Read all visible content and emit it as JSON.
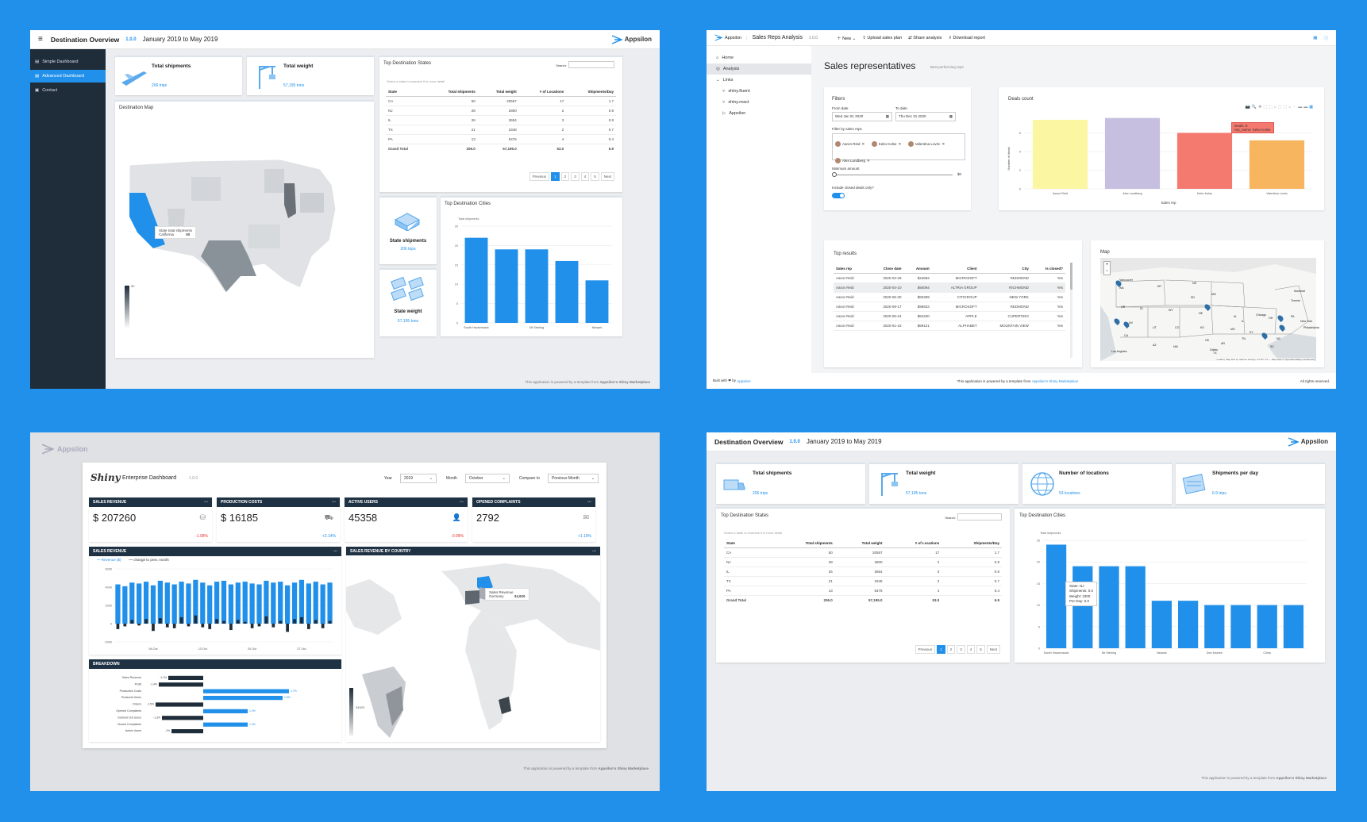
{
  "app1": {
    "title": "Destination Overview",
    "version": "1.0.0",
    "period": "January 2019 to May 2019",
    "brand": "Appsilon",
    "sidebar": [
      "Simple Dashboard",
      "Advanced Dashboard",
      "Contact"
    ],
    "kpis": [
      {
        "label": "Total shipments",
        "value": "206 trips"
      },
      {
        "label": "Total weight",
        "value": "57,195 tons"
      }
    ],
    "map_title": "Destination Map",
    "map_tooltip": {
      "title": "State total shipments",
      "state": "California",
      "value": "50"
    },
    "legend_max": "50",
    "table": {
      "title": "Top Destination States",
      "search_label": "Search:",
      "hint": "Select a state to examine it in more detail",
      "headers": [
        "State",
        "Total shipments",
        "Total weight",
        "# of Locations",
        "Shipments/Day"
      ],
      "rows": [
        [
          "CA",
          "50",
          "20557",
          "17",
          "1.7"
        ],
        [
          "NJ",
          "28",
          "2800",
          "2",
          "0.9"
        ],
        [
          "IL",
          "26",
          "3654",
          "3",
          "0.9"
        ],
        [
          "TX",
          "21",
          "3348",
          "2",
          "0.7"
        ],
        [
          "PA",
          "13",
          "5476",
          "4",
          "0.4"
        ]
      ],
      "total": [
        "Grand Total",
        "206.0",
        "57,195.0",
        "53.0",
        "6.9"
      ],
      "pagination": [
        "Previous",
        "1",
        "2",
        "3",
        "4",
        "5",
        "Next"
      ]
    },
    "state_shipments": {
      "label": "State shipments",
      "value": "206 trips"
    },
    "state_weight": {
      "label": "State weight",
      "value": "57,195 tons"
    },
    "cities_title": "Top Destination Cities",
    "cities_ylabel": "Total shipments",
    "footer_prefix": "This application is powered by a template from",
    "footer_link": "Appsilon's Shiny Marketplace"
  },
  "chart_cities_1": {
    "type": "bar",
    "categories": [
      "South Hackensack",
      "",
      "Mt Sterling",
      "",
      "Newark"
    ],
    "values": [
      22,
      19,
      19,
      16,
      11
    ],
    "ylabel": "Total shipments",
    "ylim": [
      0,
      25
    ],
    "yticks": [
      0,
      5,
      10,
      15,
      20,
      25
    ]
  },
  "app2": {
    "brand": "Appsilon",
    "title": "Sales Reps Analysis",
    "version": "1.0.0",
    "toolbar": [
      "New",
      "Upload sales plan",
      "Share analysis",
      "Download report"
    ],
    "nav": [
      "Home",
      "Analysis",
      "Links",
      "shiny.fluent",
      "shiny.react",
      "Appsilon"
    ],
    "heading": "Sales representatives",
    "subheading": "Best performing reps",
    "filters": {
      "title": "Filters",
      "from_label": "From date",
      "from_value": "Wed Jan 01 2020",
      "to_label": "To date",
      "to_value": "Thu Dec 31 2020",
      "reps_label": "Filter by sales reps",
      "reps": [
        "Aaron Reid",
        "Keko Kolse",
        "Valentina Lovric",
        "Alex Lundberg"
      ],
      "min_label": "Minimum amount",
      "min_value": "$0",
      "closed_label": "Include closed deals only?"
    },
    "deals": {
      "title": "Deals count",
      "ylabel": "Number of deals",
      "xlabel": "Sales rep",
      "tooltip_l1": "Deals: 6",
      "tooltip_l2": "rep_name: Keko Kolse"
    },
    "results": {
      "title": "Top results",
      "headers": [
        "Sales rep",
        "Close date",
        "Amount",
        "Client",
        "City",
        "Is closed?"
      ],
      "rows": [
        [
          "Aaron Reid",
          "2020-02-28",
          "$24682",
          "MICROSOFT",
          "REDMOND",
          "Yes"
        ],
        [
          "Aaron Reid",
          "2020-04-10",
          "$94094",
          "ALTRIA GROUP",
          "RICHMOND",
          "Yes"
        ],
        [
          "Aaron Reid",
          "2020-06-30",
          "$82289",
          "CITIGROUP",
          "NEW YORK",
          "Yes"
        ],
        [
          "Aaron Reid",
          "2020-09-17",
          "$95633",
          "MICROSOFT",
          "REDMOND",
          "Yes"
        ],
        [
          "Aaron Reid",
          "2020-06-24",
          "$84230",
          "APPLE",
          "CUPERTINO",
          "Yes"
        ],
        [
          "Aaron Reid",
          "2020-01-15",
          "$69121",
          "ALPHABET",
          "MOUNTAIN VIEW",
          "Yes"
        ]
      ]
    },
    "map_title": "Map",
    "map_labels": [
      "Vancouver",
      "WA",
      "MT",
      "ND",
      "MN",
      "OR",
      "ID",
      "SD",
      "WY",
      "NE",
      "NV",
      "UT",
      "CO",
      "KS",
      "CA",
      "AZ",
      "NM",
      "OK",
      "TX",
      "Los Angeles",
      "Dallas",
      "Montréal",
      "Toronto",
      "Chicago",
      "New York",
      "Philadelphia",
      "OH",
      "IL",
      "MO",
      "KY",
      "TN",
      "AR",
      "NC",
      "SC",
      "IA",
      "VA",
      "PA"
    ],
    "map_attrib": "Leaflet | Map tiles by Stamen Design, CC BY 3.0 — Map data © OpenStreetMap contributors",
    "built_with": "Built with ❤ by",
    "built_link": "Appsilon",
    "footer_prefix": "This application is powered by a template from",
    "footer_link": "Appsilon's Shiny Marketplace",
    "rights": "All rights reserved."
  },
  "chart_deals": {
    "type": "bar",
    "categories": [
      "Aaron Reid",
      "Alex Lundberg",
      "Keko Kolse",
      "Valentina Lovric"
    ],
    "values": [
      7.4,
      7.6,
      6,
      5.2
    ],
    "colors": [
      "#fbf6a2",
      "#c7bfe0",
      "#f4796e",
      "#f7b560"
    ],
    "ylim": [
      0,
      8
    ],
    "yticks": [
      0,
      2,
      4,
      6
    ]
  },
  "app3": {
    "brand": "Appsilon",
    "logo": "Shiny",
    "title": "Enterprise Dashboard",
    "version": "1.0.0",
    "year_label": "Year",
    "year_value": "2019",
    "month_label": "Month",
    "month_value": "October",
    "compare_label": "Compare to",
    "compare_value": "Previous Month",
    "kpis": [
      {
        "label": "SALES REVENUE",
        "value": "$ 207260",
        "delta": "-1.08%",
        "dir": "down"
      },
      {
        "label": "PRODUCTION COSTS",
        "value": "$ 16185",
        "delta": "+2.14%",
        "dir": "up"
      },
      {
        "label": "ACTIVE USERS",
        "value": "45358",
        "delta": "-0.99%",
        "dir": "down"
      },
      {
        "label": "OPENED COMPLAINTS",
        "value": "2792",
        "delta": "+1.19%",
        "dir": "up"
      }
    ],
    "revenue_title": "SALES REVENUE",
    "revenue_legend": [
      "Revenue ($)",
      "change to prev. month"
    ],
    "revenue_yticks": [
      "6000",
      "4000",
      "2000",
      "0",
      "-2000"
    ],
    "revenue_xticks": [
      "06 Oct",
      "13 Oct",
      "20 Oct",
      "27 Oct"
    ],
    "country_title": "SALES REVENUE BY COUNTRY",
    "country_tooltip_title": "Sales Revenue",
    "country_tooltip_name": "Germany",
    "country_tooltip_value": "34,920",
    "country_legend": "34920",
    "breakdown_title": "BREAKDOWN",
    "breakdown": [
      {
        "label": "Sales Revenue",
        "value": "-1.1%",
        "v": -1.1
      },
      {
        "label": "Profit",
        "value": "-1.4%",
        "v": -1.4
      },
      {
        "label": "Production Costs",
        "value": "2.7%",
        "v": 2.7
      },
      {
        "label": "Produced Items",
        "value": "2.5%",
        "v": 2.5
      },
      {
        "label": "Orders",
        "value": "-1.5%",
        "v": -1.5
      },
      {
        "label": "Opened Complaints",
        "value": "1.4%",
        "v": 1.4
      },
      {
        "label": "Drained Out Users",
        "value": "-1.3%",
        "v": -1.3
      },
      {
        "label": "Closed Complaints",
        "value": "1.4%",
        "v": 1.4
      },
      {
        "label": "Active Users",
        "value": "-1%",
        "v": -1.0
      }
    ],
    "footer_prefix": "This application is powered by a template from",
    "footer_link": "Appsilon's Shiny Marketplace"
  },
  "chart_revenue": {
    "type": "bar",
    "values": [
      4300,
      4100,
      4500,
      4400,
      4600,
      4200,
      4700,
      4500,
      4300,
      4600,
      4400,
      4800,
      4500,
      4200,
      4600,
      4700,
      4300,
      4500,
      4600,
      4400,
      4300,
      4700,
      4500,
      4600,
      4200,
      4500,
      4800,
      4400,
      4600,
      4300,
      4500
    ],
    "changes": [
      -600,
      -300,
      400,
      -200,
      500,
      -800,
      600,
      -400,
      -500,
      700,
      -300,
      900,
      -400,
      -600,
      500,
      300,
      -700,
      400,
      200,
      -500,
      -300,
      800,
      -400,
      300,
      -900,
      500,
      700,
      -600,
      400,
      -500,
      300
    ],
    "ylim": [
      -2000,
      6000
    ]
  },
  "app4": {
    "title": "Destination Overview",
    "version": "1.0.0",
    "period": "January 2019 to May 2019",
    "brand": "Appsilon",
    "kpis": [
      {
        "label": "Total shipments",
        "value": "206 trips"
      },
      {
        "label": "Total weight",
        "value": "57,195 tons"
      },
      {
        "label": "Number of locations",
        "value": "53 locations"
      },
      {
        "label": "Shipments per day",
        "value": "6.9 trips"
      }
    ],
    "table": {
      "title": "Top Destination States",
      "search_label": "Search:",
      "hint": "Select a state to examine it in more detail",
      "headers": [
        "State",
        "Total shipments",
        "Total weight",
        "# of Locations",
        "Shipments/Day"
      ],
      "rows": [
        [
          "CA",
          "50",
          "20557",
          "17",
          "1.7"
        ],
        [
          "NJ",
          "28",
          "2800",
          "2",
          "0.9"
        ],
        [
          "IL",
          "26",
          "3654",
          "3",
          "0.9"
        ],
        [
          "TX",
          "21",
          "3348",
          "2",
          "0.7"
        ],
        [
          "PA",
          "13",
          "5476",
          "4",
          "0.4"
        ]
      ],
      "total": [
        "Grand Total",
        "206.0",
        "57,195.0",
        "53.0",
        "6.9"
      ],
      "pagination": [
        "Previous",
        "1",
        "2",
        "3",
        "4",
        "5",
        "Next"
      ]
    },
    "cities_title": "Top Destination Cities",
    "cities_ylabel": "Total shipments",
    "tooltip": [
      "State: NJ",
      "Shipments: 0.0",
      "Weight: 2300",
      "Per Day: 0.0"
    ],
    "footer_prefix": "This application is powered by a template from",
    "footer_link": "Appsilon's Shiny Marketplace"
  },
  "chart_cities_4": {
    "type": "bar",
    "categories": [
      "South Hackensack",
      "",
      "Mt Sterling",
      "",
      "Newark",
      "",
      "Des Moines",
      "",
      "Clinto",
      ""
    ],
    "values": [
      24,
      19,
      19,
      19,
      11,
      11,
      10,
      10,
      10,
      10
    ],
    "ylabel": "Total shipments",
    "ylim": [
      0,
      25
    ],
    "yticks": [
      0,
      5,
      10,
      15,
      20,
      25
    ]
  }
}
